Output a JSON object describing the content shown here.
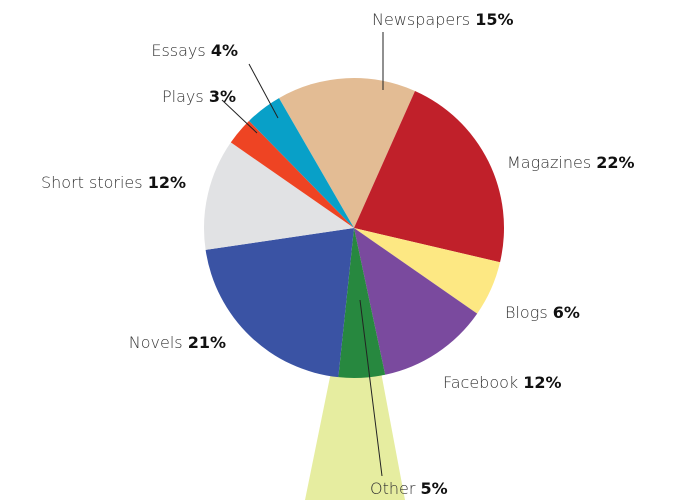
{
  "chart_data": {
    "type": "pie",
    "categories": [
      "Newspapers",
      "Magazines",
      "Blogs",
      "Facebook",
      "Other",
      "Novels",
      "Short stories",
      "Plays",
      "Essays"
    ],
    "values": [
      15,
      22,
      6,
      12,
      5,
      21,
      12,
      3,
      4
    ],
    "value_labels": [
      "15%",
      "22%",
      "6%",
      "12%",
      "5%",
      "21%",
      "12%",
      "3%",
      "4%"
    ],
    "colors": [
      "#e3bc94",
      "#c0202a",
      "#fde883",
      "#7a4a9e",
      "#27883f",
      "#3a53a4",
      "#e1e2e4",
      "#ee4423",
      "#08a0c8"
    ]
  }
}
